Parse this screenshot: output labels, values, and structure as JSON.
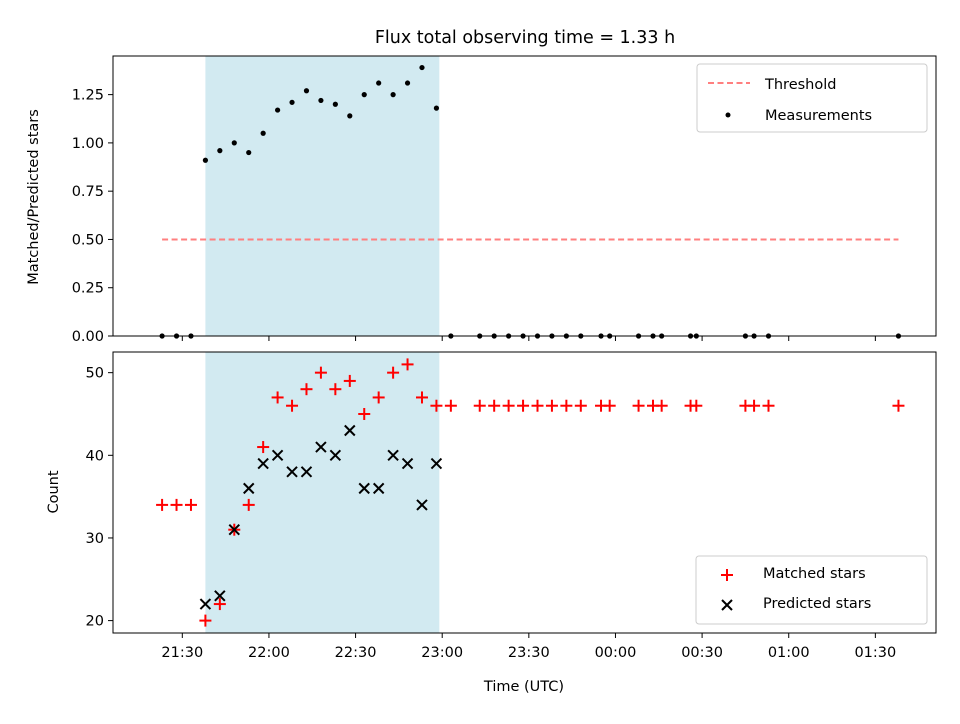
{
  "title": "Flux total observing time = 1.33 h",
  "colors": {
    "threshold": "#ff7f7f",
    "measurement": "#000000",
    "matched": "#ff0000",
    "predicted": "#000000",
    "span": "#add8e6"
  },
  "chart_data": [
    {
      "type": "scatter",
      "ylabel": "Matched/Predicted stars",
      "xlabel": "",
      "x_unit": "minutes after 21:00 UTC",
      "ylim": [
        0,
        1.45
      ],
      "yticks": [
        0.0,
        0.25,
        0.5,
        0.75,
        1.0,
        1.25
      ],
      "ytick_labels": [
        "0.00",
        "0.25",
        "0.50",
        "0.75",
        "1.00",
        "1.25"
      ],
      "highlight_span": [
        "21:38",
        "22:59"
      ],
      "legend": {
        "position": "top-right",
        "entries": [
          "Threshold",
          "Measurements"
        ]
      },
      "threshold": {
        "name": "Threshold",
        "y": 0.5,
        "x_range": [
          "21:23",
          "01:38"
        ],
        "style": "dashed"
      },
      "series": [
        {
          "name": "Measurements",
          "x": [
            "21:23",
            "21:28",
            "21:33",
            "21:38",
            "21:43",
            "21:48",
            "21:53",
            "21:58",
            "22:03",
            "22:08",
            "22:13",
            "22:18",
            "22:23",
            "22:28",
            "22:33",
            "22:38",
            "22:43",
            "22:48",
            "22:53",
            "22:58",
            "23:03",
            "23:13",
            "23:18",
            "23:23",
            "23:28",
            "23:33",
            "23:38",
            "23:43",
            "23:48",
            "23:55",
            "23:58",
            "00:08",
            "00:13",
            "00:16",
            "00:26",
            "00:28",
            "00:45",
            "00:48",
            "00:53",
            "01:38"
          ],
          "y": [
            0,
            0,
            0,
            0.91,
            0.96,
            1.0,
            0.95,
            1.05,
            1.17,
            1.21,
            1.27,
            1.22,
            1.2,
            1.14,
            1.25,
            1.31,
            1.25,
            1.31,
            1.39,
            1.18,
            0,
            0,
            0,
            0,
            0,
            0,
            0,
            0,
            0,
            0,
            0,
            0,
            0,
            0,
            0,
            0,
            0,
            0,
            0,
            0
          ]
        }
      ]
    },
    {
      "type": "scatter",
      "ylabel": "Count",
      "xlabel": "Time (UTC)",
      "ylim": [
        18.5,
        52.5
      ],
      "yticks": [
        20,
        30,
        40,
        50
      ],
      "xticks": [
        "21:30",
        "22:00",
        "22:30",
        "23:00",
        "23:30",
        "00:00",
        "00:30",
        "01:00",
        "01:30"
      ],
      "highlight_span": [
        "21:38",
        "22:59"
      ],
      "legend": {
        "position": "bottom-right",
        "entries": [
          "Matched stars",
          "Predicted stars"
        ]
      },
      "series": [
        {
          "name": "Matched stars",
          "marker": "+",
          "x": [
            "21:23",
            "21:28",
            "21:33",
            "21:38",
            "21:43",
            "21:48",
            "21:53",
            "21:58",
            "22:03",
            "22:08",
            "22:13",
            "22:18",
            "22:23",
            "22:28",
            "22:33",
            "22:38",
            "22:43",
            "22:48",
            "22:53",
            "22:58",
            "23:03",
            "23:13",
            "23:18",
            "23:23",
            "23:28",
            "23:33",
            "23:38",
            "23:43",
            "23:48",
            "23:55",
            "23:58",
            "00:08",
            "00:13",
            "00:16",
            "00:26",
            "00:28",
            "00:45",
            "00:48",
            "00:53",
            "01:38"
          ],
          "y": [
            34,
            34,
            34,
            20,
            22,
            31,
            34,
            41,
            47,
            46,
            48,
            50,
            48,
            49,
            45,
            47,
            50,
            51,
            47,
            46,
            46,
            46,
            46,
            46,
            46,
            46,
            46,
            46,
            46,
            46,
            46,
            46,
            46,
            46,
            46,
            46,
            46,
            46,
            46,
            46
          ]
        },
        {
          "name": "Predicted stars",
          "marker": "x",
          "x": [
            "21:38",
            "21:43",
            "21:48",
            "21:53",
            "21:58",
            "22:03",
            "22:08",
            "22:13",
            "22:18",
            "22:23",
            "22:28",
            "22:33",
            "22:38",
            "22:43",
            "22:48",
            "22:53",
            "22:58"
          ],
          "y": [
            22,
            23,
            31,
            36,
            39,
            40,
            38,
            38,
            41,
            40,
            43,
            36,
            36,
            40,
            39,
            34,
            39
          ]
        }
      ]
    }
  ]
}
